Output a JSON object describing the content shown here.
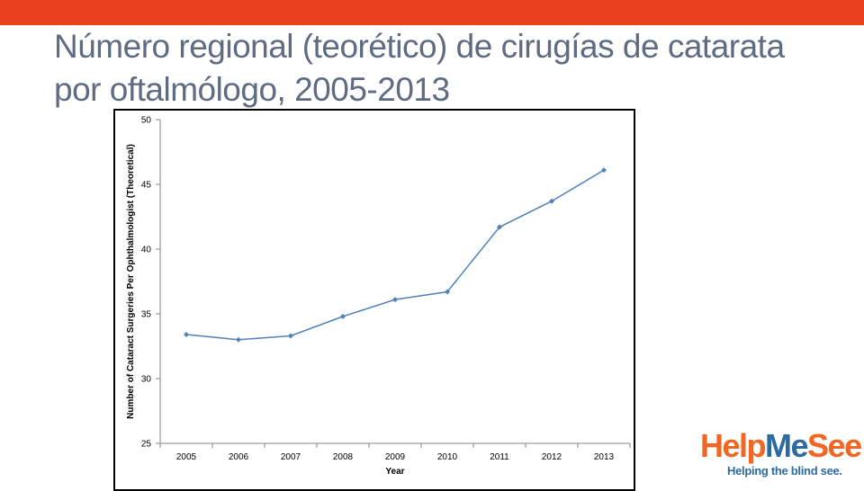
{
  "slide": {
    "title": "Número regional (teorético) de cirugías de catarata por oftalmólogo, 2005-2013"
  },
  "logo": {
    "part_help": "Help",
    "part_me": "Me",
    "part_see": "See",
    "tagline": "Helping the blind see.",
    "colors": {
      "help": "#f26522",
      "me": "#2d6aa0",
      "see": "#f26522",
      "tagline": "#2d6aa0"
    }
  },
  "colors": {
    "accent_bar": "#e8401c",
    "title_text": "#5f6b82",
    "series_line": "#4f81bd"
  },
  "chart_data": {
    "type": "line",
    "title": "",
    "xlabel": "Year",
    "ylabel": "Number of Cataract Surgeries Per Ophthalmologist  (Theoretical)",
    "x": [
      "2005",
      "2006",
      "2007",
      "2008",
      "2009",
      "2010",
      "2011",
      "2012",
      "2013"
    ],
    "series": [
      {
        "values": [
          33.4,
          33.0,
          33.3,
          34.8,
          36.1,
          36.7,
          41.7,
          43.7,
          46.1
        ]
      }
    ],
    "ylim": [
      25,
      50
    ],
    "yticks": [
      25,
      30,
      35,
      40,
      45,
      50
    ],
    "grid": false,
    "legend": "none",
    "marker": "diamond"
  }
}
